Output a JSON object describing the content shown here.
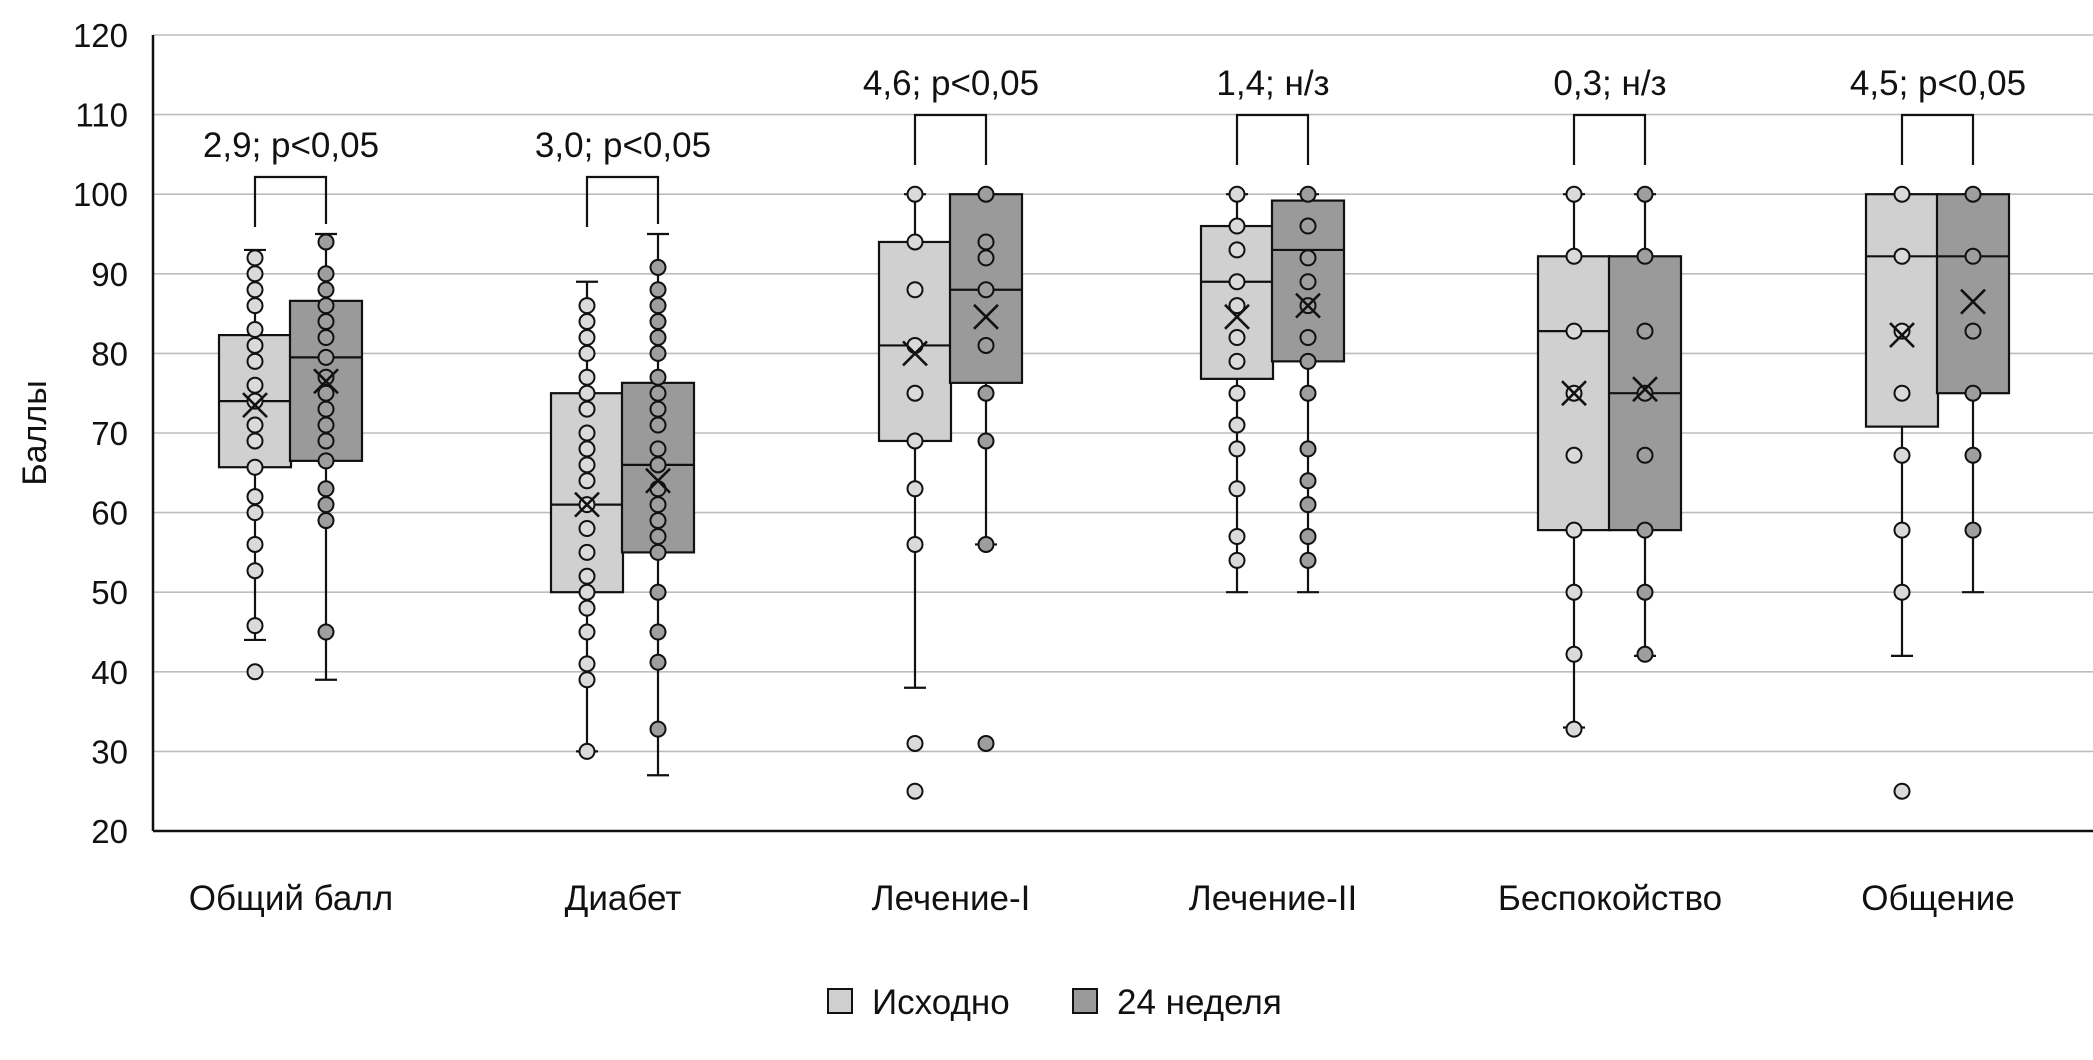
{
  "chart_data": {
    "type": "box",
    "title": "",
    "xlabel": "",
    "ylabel": "Баллы",
    "ylim": [
      20,
      120
    ],
    "yticks": [
      20,
      30,
      40,
      50,
      60,
      70,
      80,
      90,
      100,
      110,
      120
    ],
    "grid": true,
    "legend_position": "bottom-center",
    "colors": {
      "baseline": "#d0d0d0",
      "week24": "#9a9a9a",
      "stroke": "#111111",
      "grid": "#bdbdbd",
      "point_base": "#dadada",
      "point_week": "#9e9e9e"
    },
    "series": [
      {
        "key": "baseline",
        "name": "Исходно"
      },
      {
        "key": "week24",
        "name": "24 неделя"
      }
    ],
    "categories": [
      {
        "label": "Общий балл",
        "annotation": "2,9; p<0,05",
        "baseline": {
          "whisker_low": 44,
          "q1": 65.7,
          "median": 74,
          "q3": 82.3,
          "whisker_high": 93,
          "mean": 73.5,
          "points": [
            40,
            45.8,
            52.7,
            56,
            60,
            62,
            65.7,
            69,
            71,
            74,
            76,
            79,
            81,
            83,
            86,
            88,
            90,
            92
          ]
        },
        "week24": {
          "whisker_low": 39,
          "q1": 66.5,
          "median": 79.5,
          "q3": 86.6,
          "whisker_high": 95,
          "mean": 76.5,
          "points": [
            45,
            59,
            61,
            63,
            66.5,
            69,
            71,
            73,
            75,
            77,
            79.5,
            82,
            84,
            86,
            88,
            90,
            94
          ]
        }
      },
      {
        "label": "Диабет",
        "annotation": "3,0; p<0,05",
        "baseline": {
          "whisker_low": 30,
          "q1": 50,
          "median": 61,
          "q3": 75,
          "whisker_high": 89,
          "mean": 61,
          "points": [
            30,
            39,
            41,
            45,
            48,
            50,
            52,
            55,
            58,
            61,
            64,
            66,
            68,
            70,
            73,
            75,
            77,
            80,
            82,
            84,
            86
          ]
        },
        "week24": {
          "whisker_low": 27,
          "q1": 55,
          "median": 66,
          "q3": 76.3,
          "whisker_high": 95,
          "mean": 64,
          "points": [
            32.8,
            41.2,
            45,
            50,
            55,
            57,
            59,
            61,
            63,
            66,
            68,
            71,
            73,
            75,
            77,
            80,
            82,
            84,
            86,
            88,
            90.8
          ]
        }
      },
      {
        "label": "Лечение-I",
        "annotation": "4,6; p<0,05",
        "baseline": {
          "whisker_low": 38,
          "q1": 69,
          "median": 81,
          "q3": 94,
          "whisker_high": 100,
          "mean": 80,
          "points": [
            25,
            31,
            56,
            63,
            69,
            75,
            81,
            88,
            94,
            100
          ]
        },
        "week24": {
          "whisker_low": 56,
          "q1": 76.3,
          "median": 88,
          "q3": 100,
          "whisker_high": 100,
          "mean": 84.6,
          "points": [
            31,
            56,
            69,
            75,
            81,
            88,
            92,
            94,
            100
          ]
        }
      },
      {
        "label": "Лечение-II",
        "annotation": "1,4; н/з",
        "baseline": {
          "whisker_low": 50,
          "q1": 76.8,
          "median": 89,
          "q3": 96,
          "whisker_high": 100,
          "mean": 84.6,
          "points": [
            54,
            57,
            63,
            68,
            71,
            75,
            79,
            82,
            86,
            89,
            93,
            96,
            100
          ]
        },
        "week24": {
          "whisker_low": 50,
          "q1": 79,
          "median": 93,
          "q3": 99.2,
          "whisker_high": 100,
          "mean": 86,
          "points": [
            54,
            57,
            61,
            64,
            68,
            75,
            79,
            82,
            86,
            89,
            92,
            96,
            100
          ]
        }
      },
      {
        "label": "Беспокойство",
        "annotation": "0,3; н/з",
        "baseline": {
          "whisker_low": 33,
          "q1": 57.8,
          "median": 82.8,
          "q3": 92.2,
          "whisker_high": 100,
          "mean": 75,
          "points": [
            32.8,
            42.2,
            50,
            57.8,
            67.2,
            75,
            82.8,
            92.2,
            100
          ]
        },
        "week24": {
          "whisker_low": 42,
          "q1": 57.8,
          "median": 75,
          "q3": 92.2,
          "whisker_high": 100,
          "mean": 75.5,
          "points": [
            42.2,
            50,
            57.8,
            67.2,
            75,
            82.8,
            92.2,
            100
          ]
        }
      },
      {
        "label": "Общение",
        "annotation": "4,5; p<0,05",
        "baseline": {
          "whisker_low": 42,
          "q1": 70.8,
          "median": 92.2,
          "q3": 100,
          "whisker_high": 100,
          "mean": 82.3,
          "points": [
            25,
            50,
            57.8,
            67.2,
            75,
            82.8,
            92.2,
            100
          ]
        },
        "week24": {
          "whisker_low": 50,
          "q1": 75,
          "median": 92.2,
          "q3": 100,
          "whisker_high": 100,
          "mean": 86.5,
          "points": [
            57.8,
            67.2,
            75,
            82.8,
            92.2,
            100
          ]
        }
      }
    ]
  }
}
